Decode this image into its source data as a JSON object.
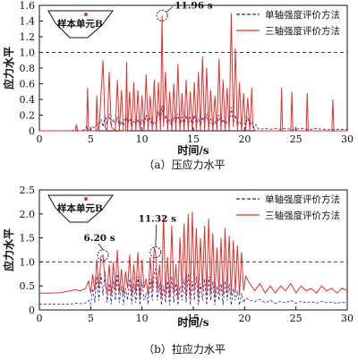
{
  "chart_data": [
    {
      "type": "line",
      "caption": "（a）压应力水平",
      "xlabel": "时间/s",
      "ylabel": "应力水平",
      "xlim": [
        0,
        30
      ],
      "ylim": [
        0,
        1.6
      ],
      "xticks": [
        "0",
        "5",
        "10",
        "15",
        "20",
        "25",
        "30"
      ],
      "yticks": [
        "0",
        "0.2",
        "0.4",
        "0.6",
        "0.8",
        "1.0",
        "1.2",
        "1.4",
        "1.6"
      ],
      "reference_line": 1.0,
      "inset_label": "样本单元B",
      "annotation": {
        "text": "11.96 s",
        "x": 11.96,
        "y": 1.47
      },
      "legend": [
        "单轴强度评价方法",
        "三轴强度评价方法"
      ],
      "series": [
        {
          "name": "单轴强度评价方法",
          "color": "#1f2a8a",
          "style": "dashed",
          "x": [
            0,
            3.0,
            3.5,
            3.6,
            3.7,
            3.8,
            4.0,
            4.5,
            4.6,
            4.7,
            5.0,
            5.2,
            5.4,
            5.6,
            5.8,
            6.0,
            6.2,
            6.4,
            6.6,
            6.8,
            7.0,
            7.2,
            7.4,
            7.6,
            7.8,
            8.0,
            8.2,
            8.4,
            8.6,
            8.8,
            9.0,
            9.2,
            9.4,
            9.6,
            9.8,
            10.0,
            10.2,
            10.4,
            10.6,
            10.8,
            11.0,
            11.2,
            11.4,
            11.6,
            11.8,
            11.96,
            12.1,
            12.3,
            12.5,
            12.7,
            12.9,
            13.1,
            13.3,
            13.5,
            13.7,
            13.9,
            14.1,
            14.3,
            14.5,
            14.7,
            14.9,
            15.1,
            15.3,
            15.5,
            15.7,
            15.9,
            16.1,
            16.3,
            16.5,
            16.7,
            16.9,
            17.1,
            17.3,
            17.5,
            17.7,
            17.9,
            18.1,
            18.3,
            18.5,
            18.7,
            18.9,
            19.1,
            19.3,
            19.5,
            19.7,
            19.9,
            20.1,
            20.3,
            20.5,
            20.7,
            20.9,
            21.1,
            21.3,
            21.5,
            22.0,
            22.5,
            23.0,
            23.5,
            24.0,
            24.5,
            25.0,
            25.5,
            26.0,
            26.5,
            27.0,
            27.5,
            28.0,
            28.5,
            29.0,
            29.5,
            30.0
          ],
          "y": [
            0,
            0,
            0.01,
            0.06,
            0.02,
            0.0,
            0.0,
            0.02,
            0.07,
            0.02,
            0.01,
            0.05,
            0.03,
            0.1,
            0.04,
            0.15,
            0.05,
            0.2,
            0.08,
            0.22,
            0.06,
            0.15,
            0.07,
            0.18,
            0.05,
            0.12,
            0.06,
            0.2,
            0.08,
            0.16,
            0.05,
            0.12,
            0.07,
            0.15,
            0.05,
            0.14,
            0.06,
            0.2,
            0.09,
            0.16,
            0.05,
            0.12,
            0.08,
            0.25,
            0.1,
            0.32,
            0.1,
            0.2,
            0.07,
            0.14,
            0.06,
            0.18,
            0.08,
            0.22,
            0.06,
            0.18,
            0.07,
            0.2,
            0.08,
            0.17,
            0.06,
            0.2,
            0.09,
            0.15,
            0.06,
            0.18,
            0.08,
            0.22,
            0.07,
            0.15,
            0.06,
            0.12,
            0.07,
            0.2,
            0.08,
            0.15,
            0.06,
            0.12,
            0.08,
            0.3,
            0.1,
            0.2,
            0.07,
            0.12,
            0.06,
            0.1,
            0.08,
            0.16,
            0.06,
            0.12,
            0.04,
            0.08,
            0.03,
            0.02,
            0.03,
            0.02,
            0.03,
            0.02,
            0.03,
            0.02,
            0.02,
            0.03,
            0.02,
            0.02,
            0.03,
            0.02,
            0.02,
            0.02,
            0.02,
            0.02,
            0.02
          ]
        },
        {
          "name": "三轴强度评价方法",
          "color": "#e0332f",
          "style": "solid",
          "x": [
            0,
            3.5,
            3.6,
            3.7,
            3.8,
            4.6,
            4.7,
            4.8,
            5.5,
            5.6,
            5.7,
            5.8,
            6.2,
            6.4,
            6.6,
            6.8,
            7.0,
            7.4,
            7.6,
            7.8,
            8.0,
            8.2,
            8.4,
            8.5,
            8.6,
            8.8,
            9.0,
            9.2,
            9.4,
            9.6,
            9.8,
            10.0,
            10.2,
            10.4,
            10.6,
            10.8,
            11.0,
            11.2,
            11.4,
            11.6,
            11.8,
            11.96,
            12.1,
            12.3,
            12.5,
            12.7,
            12.9,
            13.1,
            13.3,
            13.5,
            13.7,
            13.9,
            14.1,
            14.3,
            14.5,
            14.7,
            14.9,
            15.1,
            15.3,
            15.5,
            15.7,
            15.9,
            16.1,
            16.3,
            16.5,
            16.7,
            16.9,
            17.1,
            17.3,
            17.5,
            17.7,
            17.9,
            18.1,
            18.3,
            18.5,
            18.7,
            18.9,
            19.1,
            19.3,
            19.5,
            19.7,
            19.9,
            20.1,
            20.3,
            20.5,
            20.7,
            20.8,
            21.0,
            21.5,
            22.0,
            23.5,
            23.6,
            23.7,
            24.5,
            24.6,
            24.7,
            25.0,
            26.0,
            26.1,
            26.2,
            27.0,
            28.5,
            28.6,
            28.7,
            30.0
          ],
          "y": [
            0,
            0,
            0.08,
            0.02,
            0.0,
            0.0,
            0.55,
            0.0,
            0.0,
            0.45,
            0.0,
            0.0,
            0.9,
            0.05,
            0.0,
            0.75,
            0.05,
            0.0,
            0.65,
            0.0,
            0.52,
            0.0,
            0.0,
            0.88,
            0.0,
            0.5,
            0.0,
            0.62,
            0.0,
            0.52,
            0.0,
            0.45,
            0.0,
            0.72,
            0.0,
            0.45,
            0.0,
            0.65,
            0.0,
            0.62,
            0.0,
            1.47,
            0.05,
            0.75,
            0.0,
            0.5,
            0.0,
            0.6,
            0.0,
            0.85,
            0.0,
            0.48,
            0.0,
            0.65,
            0.0,
            0.5,
            0.0,
            0.62,
            0.0,
            0.75,
            0.0,
            0.95,
            0.0,
            0.8,
            0.0,
            0.52,
            0.0,
            0.45,
            0.0,
            0.92,
            0.0,
            0.65,
            0.0,
            0.55,
            0.0,
            1.5,
            0.05,
            1.05,
            0.0,
            0.62,
            0.0,
            0.48,
            0.0,
            0.42,
            0.0,
            0.55,
            0.05,
            0.0,
            0.0,
            0.0,
            0.0,
            0.55,
            0.0,
            0.0,
            0.5,
            0.0,
            0.0,
            0.0,
            0.48,
            0.0,
            0.0,
            0.0,
            0.4,
            0.0,
            0.0
          ]
        }
      ]
    },
    {
      "type": "line",
      "caption": "（b）拉应力水平",
      "xlabel": "时间/s",
      "ylabel": "应力水平",
      "xlim": [
        0,
        30
      ],
      "ylim": [
        0,
        2.5
      ],
      "xticks": [
        "0",
        "5",
        "10",
        "15",
        "20",
        "25",
        "30"
      ],
      "yticks": [
        "0",
        "0.5",
        "1.0",
        "1.5",
        "2.0",
        "2.5"
      ],
      "reference_line": 1.0,
      "inset_label": "样本单元B",
      "annotations": [
        {
          "text": "6.20 s",
          "x": 6.2,
          "y": 1.14
        },
        {
          "text": "11.32 s",
          "x": 11.32,
          "y": 1.2
        }
      ],
      "legend": [
        "单轴强度评价方法",
        "三轴强度评价方法"
      ],
      "series": [
        {
          "name": "单轴强度评价方法",
          "color": "#1f2a8a",
          "style": "dashed",
          "x": [
            0,
            1,
            2,
            3,
            3.5,
            4.0,
            4.5,
            4.8,
            5.0,
            5.2,
            5.4,
            5.6,
            5.8,
            6.0,
            6.2,
            6.4,
            6.6,
            6.8,
            7.0,
            7.2,
            7.4,
            7.6,
            7.8,
            8.0,
            8.2,
            8.4,
            8.6,
            8.8,
            9.0,
            9.2,
            9.4,
            9.6,
            9.8,
            10.0,
            10.2,
            10.4,
            10.6,
            10.8,
            11.0,
            11.2,
            11.32,
            11.5,
            11.7,
            11.9,
            12.1,
            12.3,
            12.5,
            12.7,
            12.9,
            13.1,
            13.3,
            13.5,
            13.7,
            13.9,
            14.1,
            14.3,
            14.5,
            14.7,
            14.9,
            15.1,
            15.3,
            15.5,
            15.7,
            15.9,
            16.1,
            16.3,
            16.5,
            16.7,
            16.9,
            17.1,
            17.3,
            17.5,
            17.7,
            17.9,
            18.1,
            18.3,
            18.5,
            18.7,
            18.9,
            19.1,
            19.3,
            19.5,
            19.7,
            19.9,
            20.1,
            20.5,
            21.0,
            21.5,
            22.0,
            22.5,
            23.0,
            23.5,
            24.0,
            24.5,
            25.0,
            25.5,
            26.0,
            26.5,
            27.0,
            27.5,
            28.0,
            28.5,
            29.0,
            29.5,
            30.0
          ],
          "y": [
            0.12,
            0.12,
            0.12,
            0.12,
            0.14,
            0.13,
            0.15,
            0.2,
            0.12,
            0.45,
            0.15,
            0.7,
            0.2,
            0.75,
            0.3,
            0.8,
            0.15,
            0.55,
            0.12,
            0.6,
            0.2,
            0.75,
            0.15,
            0.5,
            0.1,
            0.45,
            0.2,
            0.65,
            0.12,
            0.55,
            0.15,
            0.7,
            0.1,
            0.6,
            0.2,
            0.35,
            0.12,
            0.65,
            0.2,
            0.8,
            0.85,
            0.2,
            0.55,
            0.1,
            0.5,
            0.15,
            0.6,
            0.1,
            0.7,
            0.15,
            0.55,
            0.1,
            0.5,
            0.2,
            0.65,
            0.15,
            0.75,
            0.1,
            0.6,
            0.2,
            0.7,
            0.1,
            0.55,
            0.2,
            0.65,
            0.1,
            0.7,
            0.2,
            0.6,
            0.1,
            0.5,
            0.2,
            0.55,
            0.1,
            0.6,
            0.2,
            0.55,
            0.1,
            0.45,
            0.2,
            0.4,
            0.1,
            0.35,
            0.15,
            0.25,
            0.2,
            0.18,
            0.22,
            0.15,
            0.2,
            0.14,
            0.18,
            0.15,
            0.2,
            0.14,
            0.18,
            0.15,
            0.17,
            0.14,
            0.18,
            0.15,
            0.16,
            0.14,
            0.16,
            0.15
          ]
        },
        {
          "name": "三轴强度评价方法",
          "color": "#e0332f",
          "style": "solid",
          "x": [
            0,
            1,
            2,
            3,
            3.5,
            4.0,
            4.5,
            4.8,
            5.0,
            5.2,
            5.4,
            5.6,
            5.8,
            6.0,
            6.2,
            6.4,
            6.6,
            6.8,
            7.0,
            7.2,
            7.4,
            7.6,
            7.8,
            8.0,
            8.2,
            8.4,
            8.6,
            8.8,
            9.0,
            9.2,
            9.4,
            9.6,
            9.8,
            10.0,
            10.2,
            10.4,
            10.6,
            10.8,
            11.0,
            11.2,
            11.32,
            11.5,
            11.7,
            11.9,
            12.1,
            12.3,
            12.5,
            12.7,
            12.9,
            13.1,
            13.3,
            13.5,
            13.7,
            13.9,
            14.1,
            14.3,
            14.5,
            14.7,
            14.9,
            15.1,
            15.3,
            15.5,
            15.7,
            15.9,
            16.1,
            16.3,
            16.5,
            16.7,
            16.9,
            17.1,
            17.3,
            17.5,
            17.7,
            17.9,
            18.1,
            18.3,
            18.5,
            18.7,
            18.9,
            19.1,
            19.3,
            19.5,
            19.7,
            19.9,
            20.1,
            20.5,
            21.0,
            21.5,
            22.0,
            22.5,
            23.0,
            23.5,
            24.0,
            24.5,
            25.0,
            25.5,
            26.0,
            26.5,
            27.0,
            27.5,
            28.0,
            28.5,
            29.0,
            29.5,
            30.0
          ],
          "y": [
            0.35,
            0.35,
            0.36,
            0.4,
            0.42,
            0.4,
            0.45,
            0.6,
            0.35,
            0.75,
            0.4,
            1.05,
            0.45,
            1.1,
            1.14,
            0.6,
            0.35,
            0.95,
            0.3,
            1.0,
            0.4,
            1.25,
            0.35,
            0.85,
            0.3,
            0.8,
            0.45,
            1.15,
            0.3,
            0.95,
            0.35,
            1.2,
            0.25,
            1.05,
            0.45,
            0.65,
            0.3,
            1.1,
            0.4,
            1.3,
            1.2,
            0.4,
            0.95,
            0.25,
            1.95,
            0.3,
            1.1,
            0.25,
            1.75,
            0.35,
            0.95,
            0.25,
            1.5,
            0.4,
            1.8,
            0.3,
            2.0,
            0.25,
            2.05,
            0.4,
            1.7,
            0.25,
            1.5,
            0.4,
            1.75,
            0.3,
            1.9,
            0.35,
            1.6,
            0.25,
            1.3,
            0.35,
            1.5,
            0.3,
            1.7,
            0.35,
            1.55,
            0.3,
            1.45,
            0.35,
            1.35,
            0.3,
            1.2,
            0.4,
            0.7,
            0.55,
            0.4,
            0.55,
            0.35,
            0.5,
            0.35,
            0.5,
            0.4,
            0.55,
            0.35,
            0.5,
            0.4,
            0.45,
            0.35,
            0.5,
            0.4,
            0.45,
            0.35,
            0.45,
            0.4
          ]
        }
      ]
    }
  ]
}
